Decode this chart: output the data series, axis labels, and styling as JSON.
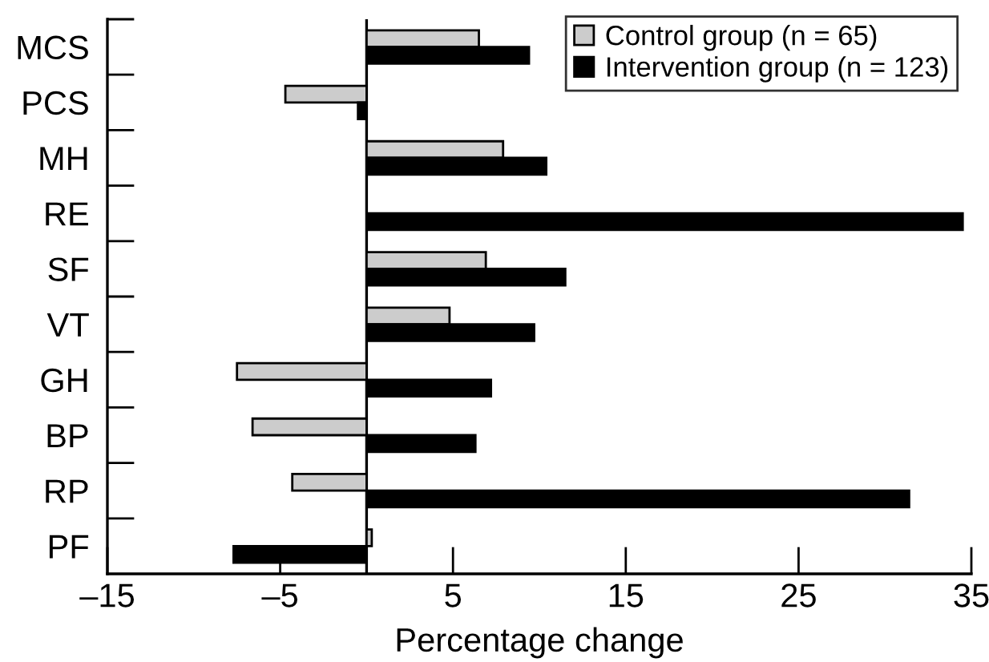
{
  "chart_data": {
    "type": "bar",
    "orientation": "horizontal",
    "xlabel": "Percentage change",
    "categories": [
      "MCS",
      "PCS",
      "MH",
      "RE",
      "SF",
      "VT",
      "GH",
      "BP",
      "RP",
      "PF"
    ],
    "series": [
      {
        "name": "Control group (n = 65)",
        "color": "#cccccc",
        "values": [
          6.5,
          -4.7,
          7.9,
          null,
          6.9,
          4.8,
          -7.5,
          -6.6,
          -4.3,
          0.3
        ]
      },
      {
        "name": "Intervention group (n = 123)",
        "color": "#000000",
        "values": [
          9.4,
          -0.5,
          10.4,
          34.5,
          11.5,
          9.7,
          7.2,
          6.3,
          31.4,
          -7.7
        ]
      }
    ],
    "xlim": [
      -15,
      35
    ],
    "xticks": [
      {
        "value": -15,
        "label": "–15"
      },
      {
        "value": -5,
        "label": "–5"
      },
      5,
      15,
      25,
      35
    ],
    "ref_lines": [
      {
        "axis": "x",
        "value": 0,
        "color": "#000000"
      }
    ],
    "grid": false,
    "legend": "top right"
  }
}
